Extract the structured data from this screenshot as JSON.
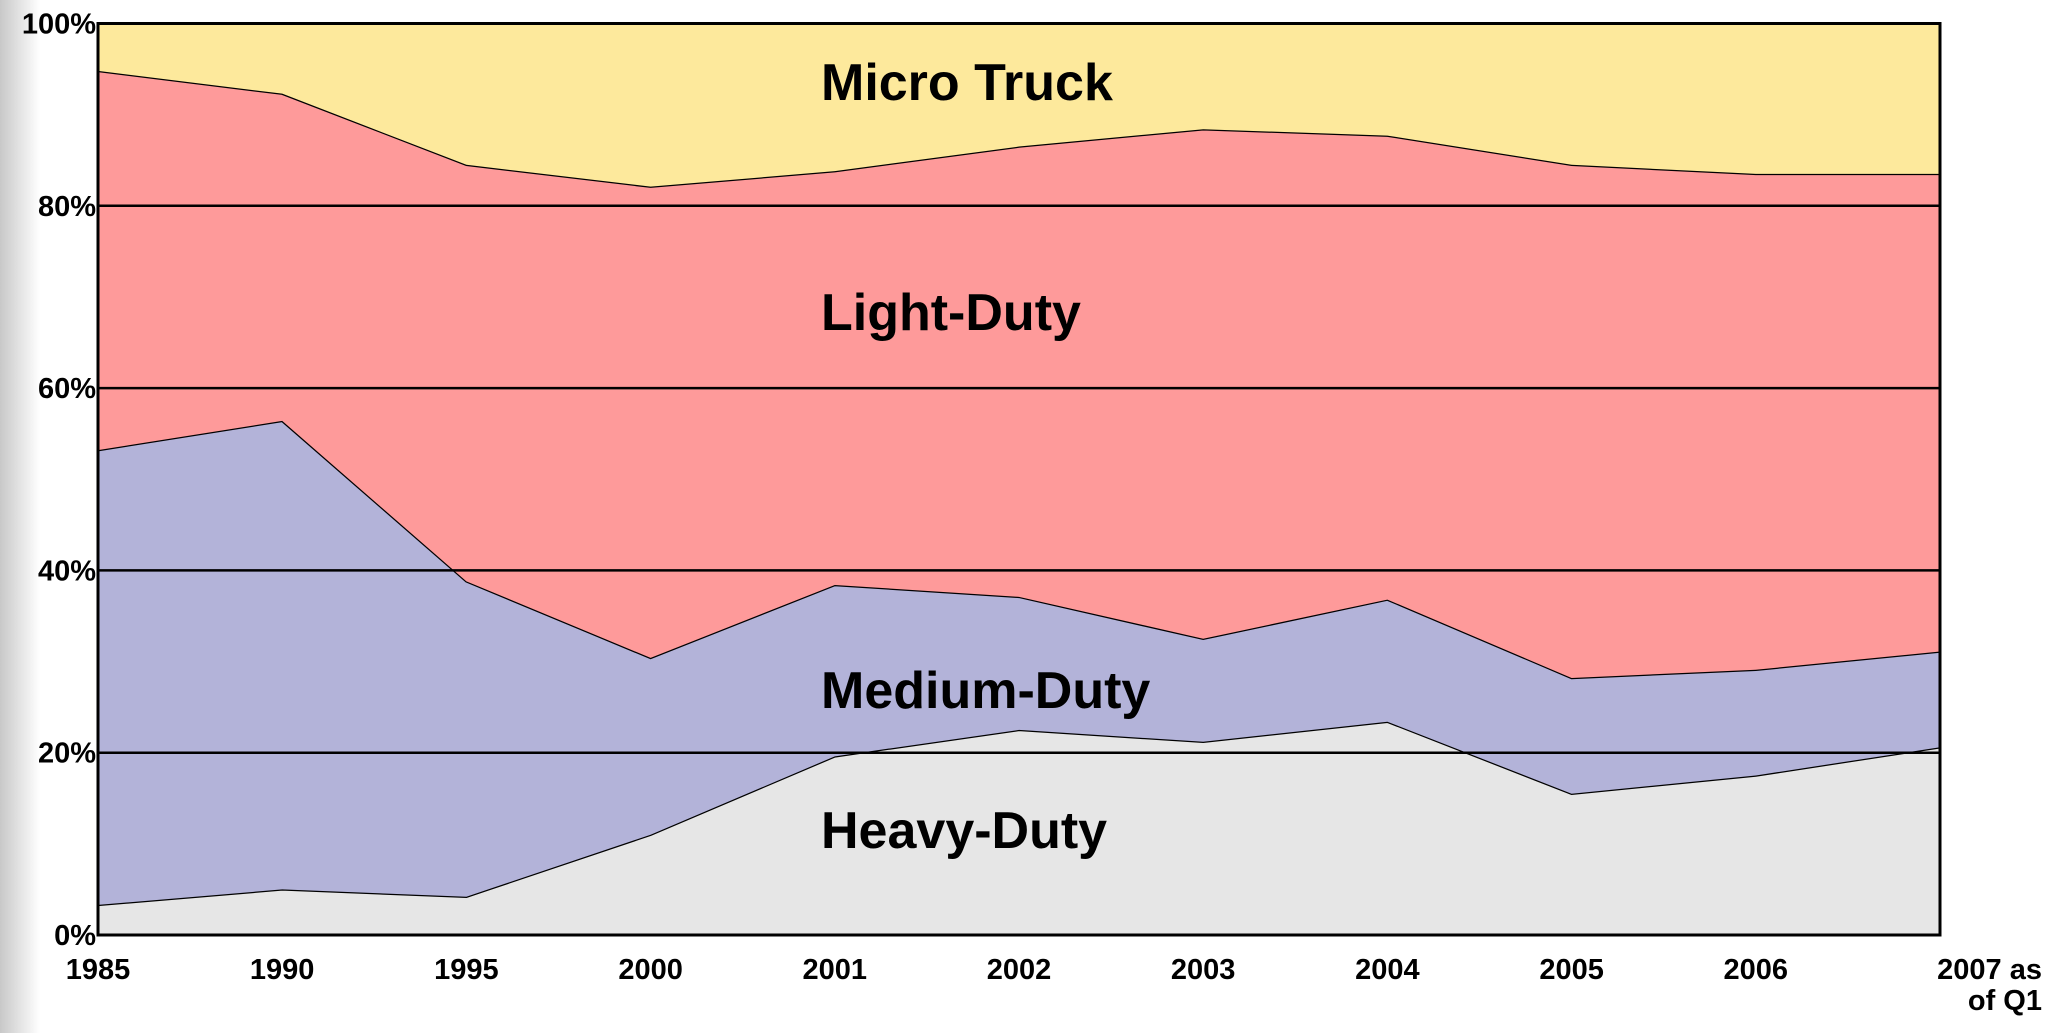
{
  "chart_data": {
    "type": "area",
    "stacked": true,
    "categories": [
      "1985",
      "1990",
      "1995",
      "2000",
      "2001",
      "2002",
      "2003",
      "2004",
      "2005",
      "2006",
      "2007 as of Q1"
    ],
    "series": [
      {
        "name": "Heavy-Duty",
        "color": "#e6e6e6",
        "values": [
          3.3,
          5.0,
          4.2,
          11.0,
          19.6,
          22.5,
          21.2,
          23.4,
          15.5,
          17.5,
          20.6
        ]
      },
      {
        "name": "Medium-Duty",
        "color": "#b3b3d9",
        "values": [
          49.9,
          51.4,
          34.6,
          19.4,
          18.8,
          14.6,
          11.3,
          13.4,
          12.7,
          11.6,
          10.5
        ]
      },
      {
        "name": "Light-Duty",
        "color": "#fe9a9a",
        "values": [
          41.6,
          35.9,
          45.7,
          51.7,
          45.4,
          49.4,
          55.9,
          50.9,
          56.3,
          54.4,
          52.4
        ]
      },
      {
        "name": "Micro Truck",
        "color": "#fde99c",
        "values": [
          5.2,
          7.7,
          15.5,
          17.9,
          16.2,
          13.5,
          11.6,
          12.3,
          15.5,
          16.5,
          16.5
        ]
      }
    ],
    "ylim": [
      0,
      100
    ],
    "yticks": [
      {
        "value": 0,
        "label": "0%"
      },
      {
        "value": 20,
        "label": "20%"
      },
      {
        "value": 40,
        "label": "40%"
      },
      {
        "value": 60,
        "label": "60%"
      },
      {
        "value": 80,
        "label": "80%"
      },
      {
        "value": 100,
        "label": "100%"
      }
    ],
    "grid": true
  }
}
